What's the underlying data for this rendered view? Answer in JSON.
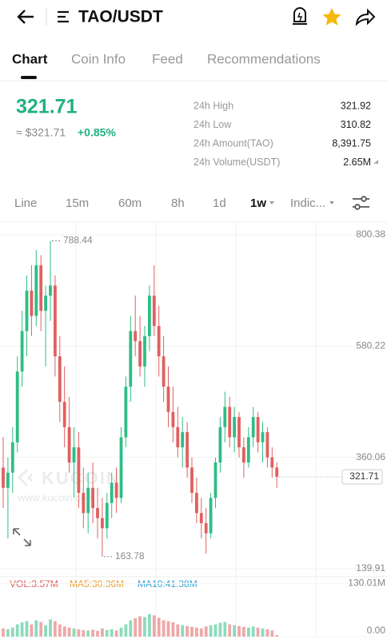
{
  "header": {
    "pair": "TAO/USDT"
  },
  "tabs": [
    "Chart",
    "Coin Info",
    "Feed",
    "Recommendations"
  ],
  "price": {
    "last": "321.71",
    "fiat": "≈ $321.71",
    "change": "+0.85%"
  },
  "stats": [
    {
      "label": "24h High",
      "value": "321.92"
    },
    {
      "label": "24h Low",
      "value": "310.82"
    },
    {
      "label": "24h Amount(TAO)",
      "value": "8,391.75"
    },
    {
      "label": "24h Volume(USDT)",
      "value": "2.65M"
    }
  ],
  "timeframes": [
    "Line",
    "15m",
    "60m",
    "8h",
    "1d",
    "1w",
    "Indic..."
  ],
  "watermark": {
    "brand": "KUCOIN",
    "url": "www.kucoin.com"
  },
  "chart_data": {
    "type": "candlestick",
    "up_color": "#2ebd85",
    "down_color": "#e0605f",
    "grid": true,
    "ylim": [
      130.5,
      822.4
    ],
    "yticks": [
      800.38,
      580.22,
      360.06,
      139.91
    ],
    "open": [
      340,
      300,
      330,
      390,
      530,
      610,
      690,
      640,
      740,
      650,
      680,
      700,
      560,
      470,
      420,
      350,
      380,
      290,
      250,
      300,
      260,
      240,
      220,
      270,
      310,
      280,
      400,
      500,
      610,
      590,
      540,
      600,
      680,
      620,
      560,
      500,
      450,
      420,
      380,
      410,
      340,
      290,
      250,
      230,
      210,
      280,
      350,
      420,
      460,
      400,
      440,
      380,
      350,
      400,
      440,
      390,
      410,
      360,
      340
    ],
    "high": [
      400,
      360,
      420,
      560,
      650,
      720,
      740,
      770,
      760,
      700,
      788.44,
      720,
      600,
      540,
      480,
      420,
      410,
      340,
      330,
      350,
      300,
      280,
      290,
      330,
      340,
      420,
      520,
      640,
      680,
      640,
      620,
      700,
      740,
      660,
      600,
      540,
      500,
      460,
      440,
      430,
      360,
      320,
      280,
      260,
      290,
      360,
      440,
      490,
      480,
      460,
      450,
      400,
      420,
      460,
      450,
      430,
      420,
      380,
      350
    ],
    "low": [
      260,
      200,
      290,
      370,
      500,
      560,
      600,
      620,
      610,
      540,
      630,
      520,
      430,
      380,
      330,
      280,
      260,
      220,
      210,
      230,
      200,
      163.78,
      200,
      240,
      250,
      270,
      380,
      470,
      560,
      520,
      500,
      570,
      600,
      520,
      470,
      420,
      390,
      360,
      340,
      320,
      270,
      230,
      200,
      170,
      200,
      260,
      330,
      390,
      380,
      370,
      360,
      320,
      340,
      380,
      370,
      350,
      340,
      320,
      300
    ],
    "close": [
      300,
      330,
      390,
      530,
      610,
      690,
      640,
      740,
      650,
      680,
      700,
      560,
      470,
      420,
      350,
      380,
      290,
      250,
      300,
      260,
      240,
      220,
      270,
      310,
      280,
      400,
      500,
      610,
      590,
      540,
      600,
      680,
      620,
      560,
      500,
      450,
      420,
      380,
      410,
      340,
      290,
      250,
      230,
      210,
      280,
      350,
      420,
      460,
      400,
      440,
      380,
      350,
      400,
      440,
      390,
      410,
      360,
      340,
      321.71
    ],
    "volume": {
      "indicators": [
        "VOL:3.57M",
        "MA5:30.36M",
        "MA10:41.38M"
      ],
      "ylim": [
        0,
        135
      ],
      "yticks": [
        {
          "value": 130.01,
          "label": "130.01M"
        },
        {
          "value": 0,
          "label": "0.00"
        }
      ],
      "values": [
        20,
        18,
        22,
        30,
        35,
        38,
        30,
        40,
        36,
        28,
        42,
        38,
        30,
        25,
        22,
        20,
        18,
        16,
        15,
        17,
        14,
        20,
        16,
        18,
        15,
        22,
        30,
        40,
        45,
        50,
        48,
        55,
        52,
        46,
        40,
        38,
        35,
        30,
        28,
        26,
        24,
        22,
        20,
        25,
        28,
        30,
        34,
        36,
        30,
        28,
        26,
        24,
        22,
        25,
        22,
        20,
        18,
        15,
        3.57
      ]
    }
  }
}
